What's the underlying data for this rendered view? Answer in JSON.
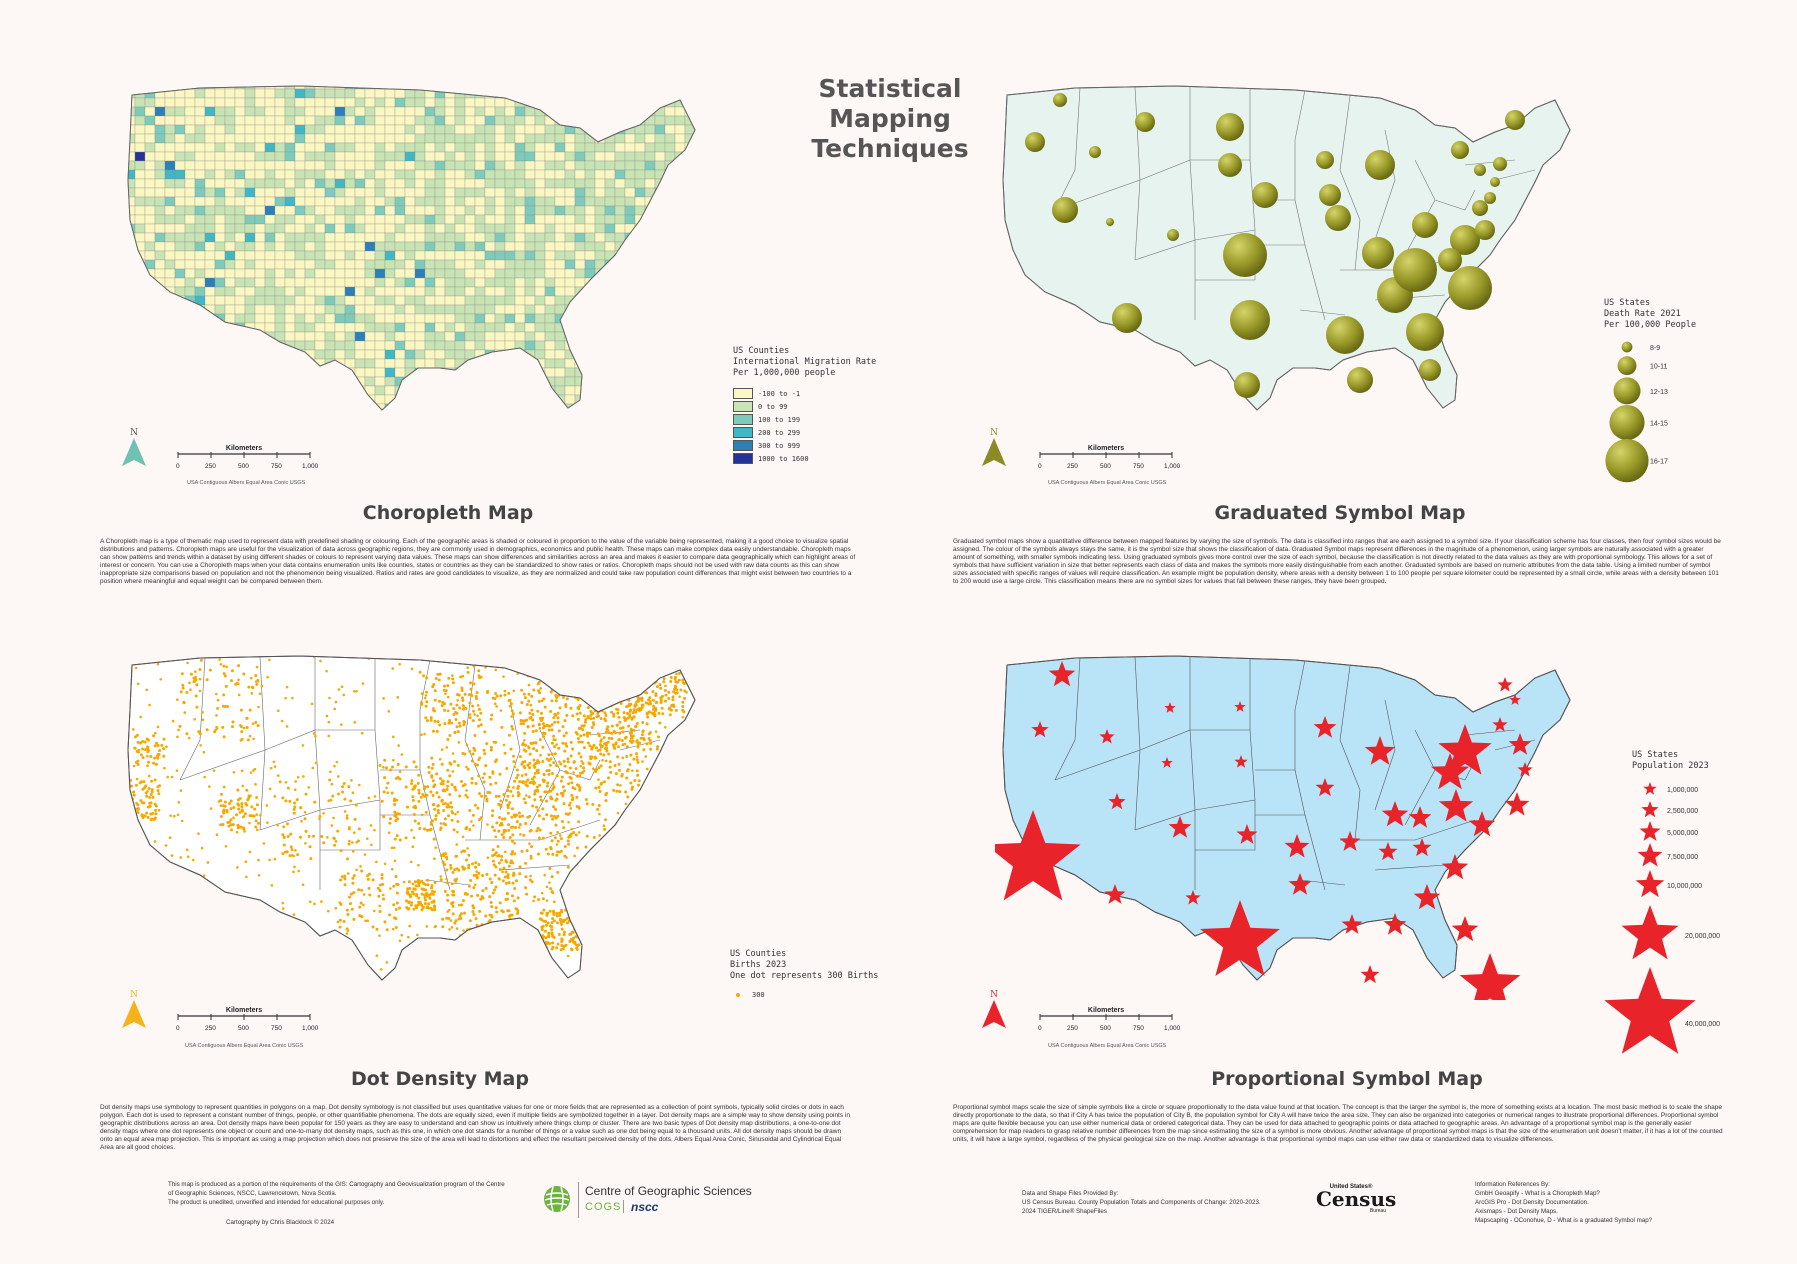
{
  "title": "Statistical\nMapping\nTechniques",
  "panels": {
    "choropleth": {
      "title": "Choropleth Map",
      "legend_title": "US Counties\nInternational Migration Rate\nPer 1,000,000 people",
      "legend": [
        {
          "label": "-100 to -1",
          "color": "#fbf7c2"
        },
        {
          "label": "0 to 99",
          "color": "#c8e3b4"
        },
        {
          "label": "100 to 199",
          "color": "#7fcbbb"
        },
        {
          "label": "200 to 299",
          "color": "#41b6c4"
        },
        {
          "label": "300 to 999",
          "color": "#2c7fb8"
        },
        {
          "label": "1000 to 1600",
          "color": "#253494"
        }
      ],
      "map_fill": "#f8f5c6",
      "north_color": "#6fc2b2",
      "description": "A Choropleth map is a type of thematic map used to represent data with predefined shading or colouring. Each of the geographic areas is shaded or coloured in proportion to the value of the variable being represented, making it a good choice to visualize spatial distributions and patterns. Choropleth maps are useful for the visualization of data across geographic regions, they are commonly used in demographics, economics and public health. These maps can make complex data easily understandable. Choropleth maps can show patterns and trends within a dataset by using different shades or colours to represent varying data values. These maps can show differences and similarities across an area and makes it easier to compare data geographically which can highlight areas of interest or concern. You can use a Choropleth maps when your data contains enumeration units like counties, states or countries as they can be standardized to show rates or ratios. Choropleth maps should not be used with raw data counts as this can show inappropriate size comparisons based on population and not the phenomenon being visualized. Ratios and rates are good candidates to visualize, as they are normalized and could take raw population count differences that might exist between two countries to a position where meaningful and equal weight can be compared between them."
    },
    "graduated": {
      "title": "Graduated Symbol Map",
      "legend_title": "US States\nDeath Rate 2021\nPer 100,000 People",
      "legend": [
        "8-9",
        "10-11",
        "12-13",
        "14-15",
        "16-17"
      ],
      "map_fill": "#e6f3ee",
      "symbol_color": "#9a9a2a",
      "north_color": "#8c8a25",
      "description": "Graduated symbol maps show a quantitative difference between mapped features by varying the size of symbols. The data is classified into ranges that are each assigned to a symbol size. If your classification scheme has four classes, then four symbol sizes would be assigned. The colour of the symbols always stays the same, it is the symbol size that shows the classification of data. Graduated Symbol maps represent differences in the magnitude of a phenomenon, using larger symbols are naturally associated with a greater amount of something, with smaller symbols indicating less. Using graduated symbols gives more control over the size of each symbol, because the classification is not directly related to the data values as they are with proportional symbology. This allows for a set of symbols that have sufficient variation in size that better represents each class of data and makes the symbols more easily distinguishable from each another. Graduated symbols are based on numeric attributes from the data table. Using a limited number of symbol sizes associated with specific ranges of values will require classification. An example might be population density, where areas with a density between 1 to 100 people per square kilometer could be represented by a small circle, while areas with a density between 101 to 200 would use a large circle. This classification means there are no symbol sizes for values that fall between these ranges, they have been grouped."
    },
    "dot": {
      "title": "Dot Density Map",
      "legend_title": "US Counties\nBirths 2023\nOne dot represents 300 Births",
      "legend_value": "300",
      "map_fill": "#ffffff",
      "dot_color": "#f5a800",
      "north_color": "#f5b21a",
      "description": "Dot density maps use symbology to represent quantities in polygons on a map. Dot density symbology is not classified but uses quantitative values for one or more fields that are represented as a collection of point symbols, typically solid circles or dots in each polygon. Each dot is used to represent a constant number of things, people, or other quantifiable phenomena. The dots are equally sized, even if multiple fields are symbolized together in a layer. Dot density maps are a simple way to show density using points in geographic distributions across an area. Dot density maps have been popular for 150 years as they are easy to understand and can show us intuitively where things clump or cluster. There are two basic types of Dot density map distributions, a one-to-one dot density maps where one dot represents one object or count and one-to-many dot density maps, such as this one, in which one dot stands for a number of things or a value such as one dot being equal to a thousand units. All dot density maps should be drawn onto an equal area map projection. This is important as using a map projection which does not preserve the size of the area will lead to distortions and effect the resultant perceived density of the dots. Albers Equal Area Conic, Sinusoidal and Cylindrical Equal Area are all good choices."
    },
    "proportional": {
      "title": "Proportional Symbol Map",
      "legend_title": "US States\nPopulation 2023",
      "legend": [
        "1,000,000",
        "2,500,000",
        "5,000,000",
        "7,500,000",
        "10,000,000",
        "20,000,000",
        "40,000,000"
      ],
      "map_fill": "#b9e3f7",
      "star_color": "#e8232a",
      "north_color": "#e8232a",
      "description": "Proportional symbol maps scale the size of simple symbols like a circle or square proportionally to the data value found at that location. The concept is that the larger the symbol is, the more of something exists at a location. The most basic method is to scale the shape directly proportionate to the data, so that if City A has twice the population of City B, the population symbol for City A will have twice the area size. They can also be organized into categories or numerical ranges to illustrate proportional differences. Proportional symbol maps are quite flexible because you can use either numerical data or ordered categorical data. They can be used for data attached to geographic points or data attached to geographic areas. An advantage of a proportional symbol map is the generally easier comprehension for map readers to grasp relative number differences from the map since estimating the size of a symbol is more obvious. Another advantage of proportional symbol maps is that the size of the enumeration unit doesn't matter, if it has a lot of the counted units, it will have a large symbol, regardless of the physical geological size on the map. Another advantage is that proportional symbol maps can use either raw data or standardized data to visualize differences."
    }
  },
  "scale": {
    "title": "Kilometers",
    "ticks": [
      "0",
      "250",
      "500",
      "750",
      "1,000"
    ],
    "projection": "USA Contiguous Albers Equal Area Conic USGS",
    "north": "N"
  },
  "footer": {
    "left": "This map is produced as a portion of the requirements of the GIS: Cartography and Geovisualization program of the Centre of Geographic Sciences, NSCC, Lawrencetown, Nova Scotia.\nThe product is unedited, unverified and intended for educational purposes only.",
    "credit": "Cartography by Chris Blacklock © 2024",
    "cogs_name": "Centre of Geographic Sciences",
    "cogs_short": "COGS",
    "nscc": "nscc",
    "data_sources": "Data and Shape Files Provided By:\nUS Census Bureau. County Population Totals and Components of Change: 2020-2023.\n2024 TIGER/Line® ShapeFiles",
    "census_top": "United States®",
    "census_main": "Census",
    "census_sub": "Bureau",
    "references": "Information References By:\nGmbH Geoapify - What is a Choropleth Map?\nArcGIS Pro - Dot Density Documentation.\nAxismaps - Dot Density Maps.\nMapscaping - OConohue, D - What is a graduated Symbol map?"
  }
}
